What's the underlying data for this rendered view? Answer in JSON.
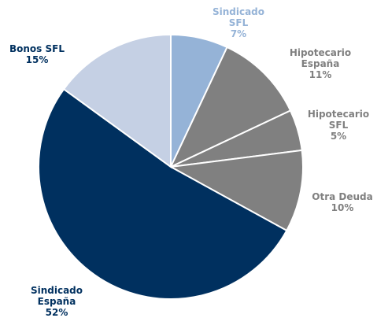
{
  "chart_data": {
    "type": "pie",
    "categories": [
      "Sindicado SFL",
      "Hipotecario España",
      "Hipotecario SFL",
      "Otra Deuda",
      "Sindicado España",
      "Bonos SFL"
    ],
    "values": [
      7,
      11,
      5,
      10,
      52,
      15
    ],
    "value_labels": [
      "7%",
      "11%",
      "5%",
      "10%",
      "52%",
      "15%"
    ],
    "colors": [
      "#95b3d7",
      "#808080",
      "#808080",
      "#808080",
      "#00305f",
      "#c5d0e4"
    ],
    "label_colors": [
      "#95b3d7",
      "#808080",
      "#808080",
      "#808080",
      "#00305f",
      "#00305f"
    ]
  }
}
